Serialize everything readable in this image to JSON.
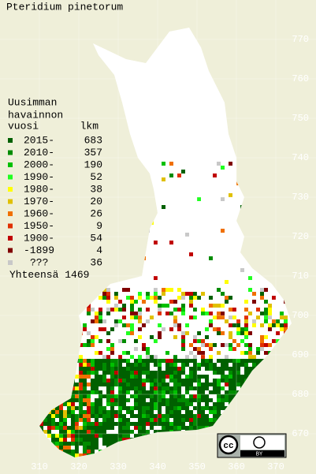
{
  "title": "Pteridium pinetorum",
  "legend": {
    "heading": [
      "Uusimman",
      "havainnon",
      "vuosi"
    ],
    "count_header": "lkm",
    "rows": [
      {
        "label": "2015-",
        "count": "683",
        "color": "#006000"
      },
      {
        "label": "2010-",
        "count": "357",
        "color": "#008c00"
      },
      {
        "label": "2000-",
        "count": "190",
        "color": "#00c000"
      },
      {
        "label": "1990-",
        "count": "52",
        "color": "#20ff20"
      },
      {
        "label": "1980-",
        "count": "38",
        "color": "#ffff00"
      },
      {
        "label": "1970-",
        "count": "20",
        "color": "#e0c000"
      },
      {
        "label": "1960-",
        "count": "26",
        "color": "#f07000"
      },
      {
        "label": "1950-",
        "count": "9",
        "color": "#e03000"
      },
      {
        "label": "1900-",
        "count": "54",
        "color": "#c00000"
      },
      {
        "label": "-1899",
        "count": "4",
        "color": "#800000"
      },
      {
        "label": "???",
        "count": "36",
        "color": "#c8c8c8"
      }
    ],
    "total": "Yhteensä 1469"
  },
  "map": {
    "xlim": [
      300,
      380
    ],
    "ylim": [
      660,
      780
    ],
    "xticks": [
      310,
      320,
      330,
      340,
      350,
      360,
      370
    ],
    "yticks": [
      770,
      760,
      750,
      740,
      730,
      720,
      710,
      700,
      690,
      680,
      670
    ]
  },
  "badge": {
    "cc": "cc",
    "by": "BY"
  }
}
